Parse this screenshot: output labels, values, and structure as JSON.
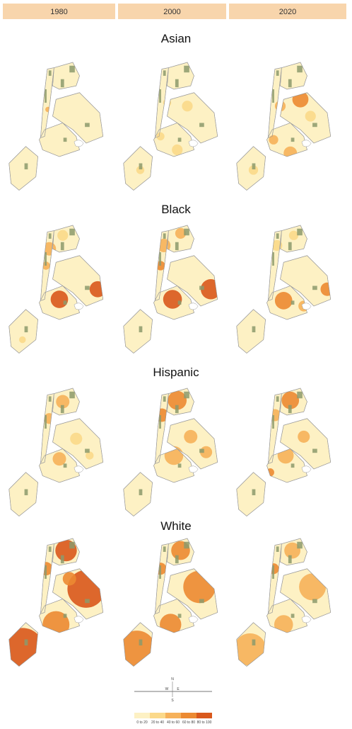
{
  "header": {
    "columns": [
      "1980",
      "2000",
      "2020"
    ]
  },
  "panels": [
    {
      "title": "Asian"
    },
    {
      "title": "Black"
    },
    {
      "title": "Hispanic"
    },
    {
      "title": "White"
    }
  ],
  "compass": [
    "N",
    "W",
    "E",
    "S"
  ],
  "legend": {
    "items": [
      {
        "label": "0 to 20",
        "color": "#fdf1c4"
      },
      {
        "label": "20 to 40",
        "color": "#fbd98a"
      },
      {
        "label": "40 to 60",
        "color": "#f6b15a"
      },
      {
        "label": "60 to 80",
        "color": "#ec8a32"
      },
      {
        "label": "80 to 100",
        "color": "#d9581c"
      }
    ]
  }
}
